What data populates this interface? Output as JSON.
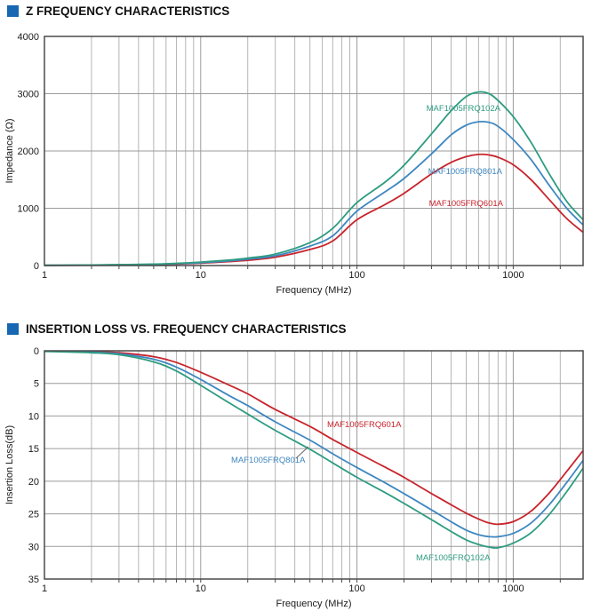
{
  "accent_color": "#1767b2",
  "chart_data": [
    {
      "type": "line",
      "title": "Z FREQUENCY CHARACTERISTICS",
      "xlabel": "Frequency (MHz)",
      "ylabel": "Impedance (Ω)",
      "x_scale": "log",
      "x_range": [
        1,
        2800
      ],
      "x_tick_values": [
        1,
        10,
        100,
        1000
      ],
      "x_tick_labels": [
        "1",
        "10",
        "100",
        "1000"
      ],
      "ylim": [
        0,
        4000
      ],
      "y_inverted": false,
      "y_tick_values": [
        0,
        1000,
        2000,
        3000,
        4000
      ],
      "y_tick_labels": [
        "0",
        "1000",
        "2000",
        "3000",
        "4000"
      ],
      "grid": true,
      "x": [
        1,
        1.5,
        2,
        3,
        5,
        7,
        10,
        15,
        20,
        30,
        50,
        70,
        100,
        150,
        200,
        300,
        400,
        500,
        600,
        700,
        800,
        1000,
        1300,
        1700,
        2200,
        2800
      ],
      "series": [
        {
          "name": "MAF1005FRQ601A",
          "color": "#c8242c",
          "values": [
            3,
            5,
            7,
            11,
            18,
            27,
            42,
            68,
            92,
            145,
            280,
            430,
            800,
            1060,
            1260,
            1600,
            1800,
            1900,
            1940,
            1930,
            1890,
            1760,
            1500,
            1150,
            820,
            580
          ],
          "label": {
            "x": 566,
            "y": 202,
            "anchor": "end"
          }
        },
        {
          "name": "MAF1005FRQ801A",
          "color": "#3e87c0",
          "values": [
            4,
            6,
            8,
            13,
            21,
            32,
            50,
            80,
            110,
            170,
            340,
            520,
            950,
            1280,
            1520,
            1950,
            2280,
            2450,
            2510,
            2500,
            2430,
            2200,
            1850,
            1400,
            1000,
            710
          ],
          "label": {
            "x": 565,
            "y": 166,
            "anchor": "end"
          }
        },
        {
          "name": "MAF1005FRQ102A",
          "color": "#2e9c80",
          "values": [
            5,
            7,
            10,
            15,
            25,
            38,
            60,
            95,
            130,
            200,
            400,
            650,
            1100,
            1450,
            1750,
            2300,
            2700,
            2950,
            3030,
            3000,
            2880,
            2600,
            2150,
            1600,
            1120,
            800
          ],
          "label": {
            "x": 563,
            "y": 95,
            "anchor": "end"
          }
        }
      ]
    },
    {
      "type": "line",
      "title": "INSERTION LOSS VS. FREQUENCY CHARACTERISTICS",
      "xlabel": "Frequency (MHz)",
      "ylabel": "Insertion Loss(dB)",
      "x_scale": "log",
      "x_range": [
        1,
        2800
      ],
      "x_tick_values": [
        1,
        10,
        100,
        1000
      ],
      "x_tick_labels": [
        "1",
        "10",
        "100",
        "1000"
      ],
      "ylim": [
        0,
        35
      ],
      "y_inverted": true,
      "y_tick_values": [
        0,
        5,
        10,
        15,
        20,
        25,
        30,
        35
      ],
      "y_tick_labels": [
        "0",
        "5",
        "10",
        "15",
        "20",
        "25",
        "30",
        "35"
      ],
      "grid": true,
      "x": [
        1,
        1.5,
        2,
        3,
        5,
        7,
        10,
        15,
        20,
        30,
        50,
        70,
        100,
        150,
        200,
        300,
        400,
        500,
        600,
        700,
        800,
        1000,
        1300,
        1700,
        2200,
        2800
      ],
      "series": [
        {
          "name": "MAF1005FRQ601A",
          "color": "#c8242c",
          "values": [
            0.05,
            0.1,
            0.15,
            0.3,
            0.9,
            1.8,
            3.3,
            5.2,
            6.6,
            9.0,
            11.6,
            13.6,
            15.6,
            17.8,
            19.4,
            21.9,
            23.6,
            24.9,
            25.8,
            26.4,
            26.6,
            26.2,
            24.6,
            21.8,
            18.5,
            15.3
          ],
          "label": {
            "x": 368,
            "y": 97,
            "anchor": "start"
          }
        },
        {
          "name": "MAF1005FRQ801A",
          "color": "#3e87c0",
          "values": [
            0.05,
            0.12,
            0.2,
            0.45,
            1.3,
            2.5,
            4.4,
            6.8,
            8.4,
            10.9,
            13.7,
            15.8,
            17.9,
            20.2,
            21.9,
            24.4,
            26.2,
            27.5,
            28.2,
            28.5,
            28.5,
            28.0,
            26.4,
            23.6,
            20.2,
            16.8
          ],
          "label": {
            "x": 260,
            "y": 137,
            "anchor": "start",
            "leader": [
              333,
              132,
              347,
              119
            ]
          }
        },
        {
          "name": "MAF1005FRQ102A",
          "color": "#2e9c80",
          "values": [
            0.1,
            0.2,
            0.3,
            0.6,
            1.7,
            3.1,
            5.3,
            7.9,
            9.7,
            12.2,
            15.1,
            17.2,
            19.4,
            21.7,
            23.4,
            25.9,
            27.7,
            29.0,
            29.7,
            30.1,
            30.2,
            29.5,
            27.9,
            25.1,
            21.6,
            18.0
          ],
          "label": {
            "x": 468,
            "y": 247,
            "anchor": "start"
          }
        }
      ]
    }
  ]
}
